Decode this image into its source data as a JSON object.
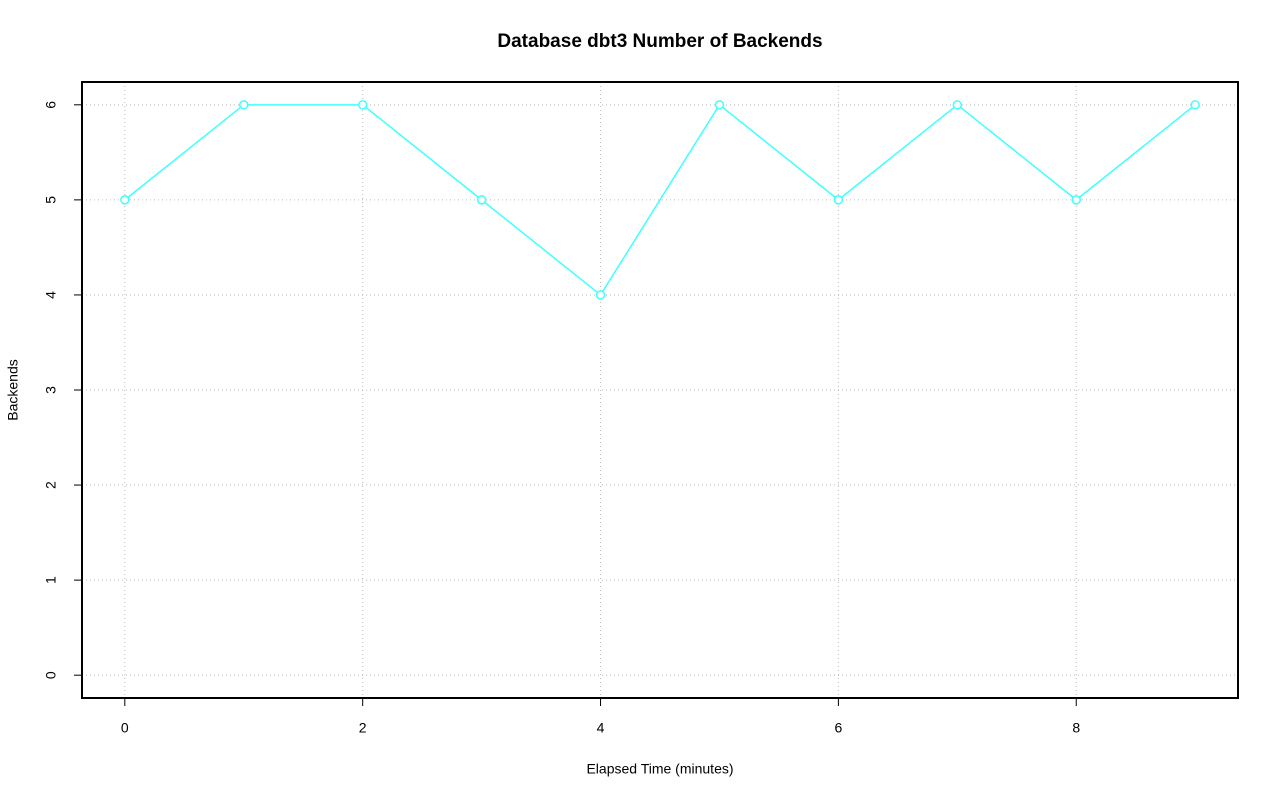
{
  "chart_data": {
    "type": "line",
    "title": "Database dbt3 Number of Backends",
    "xlabel": "Elapsed Time (minutes)",
    "ylabel": "Backends",
    "x": [
      0,
      1,
      2,
      3,
      4,
      5,
      6,
      7,
      8,
      9
    ],
    "series": [
      {
        "name": "Backends",
        "color": "#40ffff",
        "values": [
          5,
          6,
          6,
          5,
          4,
          6,
          5,
          6,
          5,
          6
        ]
      }
    ],
    "xlim": [
      -0.36,
      9.36
    ],
    "xticks": [
      0,
      2,
      4,
      6,
      8
    ],
    "ylim": [
      -0.24,
      6.24
    ],
    "yticks": [
      0,
      1,
      2,
      3,
      4,
      5,
      6
    ],
    "grid": true
  }
}
